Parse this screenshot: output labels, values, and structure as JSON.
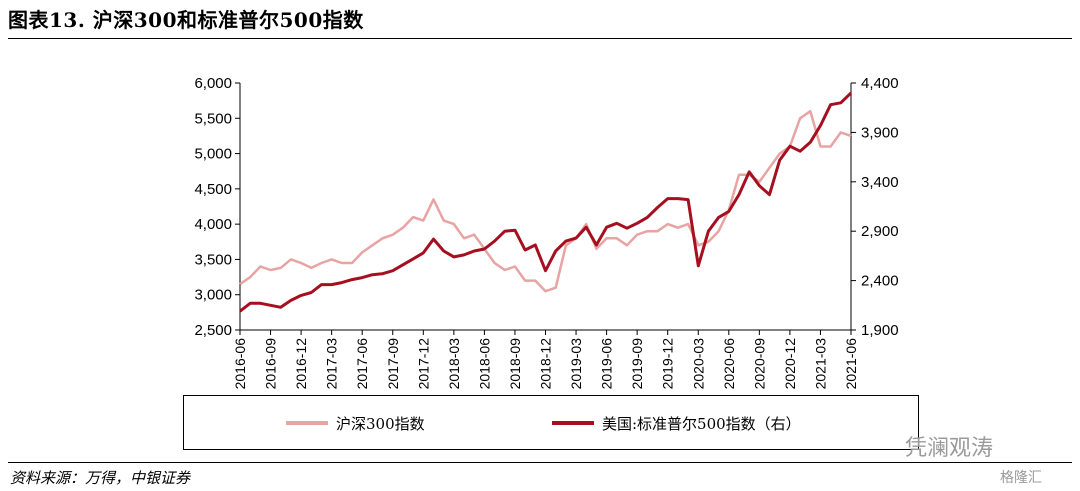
{
  "header": {
    "title": "图表13. 沪深300和标准普尔500指数"
  },
  "footer": {
    "source": "资料来源：万得，中银证券"
  },
  "watermark": {
    "text": "凭澜观涛",
    "logo_text": "格隆汇"
  },
  "colors": {
    "csi300": "#e8a3a3",
    "sp500": "#a50f1f",
    "axis": "#000000"
  },
  "chart_data": {
    "type": "line",
    "title": "",
    "xlabel": "",
    "x_ticks": [
      "2016-06",
      "2016-09",
      "2016-12",
      "2017-03",
      "2017-06",
      "2017-09",
      "2017-12",
      "2018-03",
      "2018-06",
      "2018-09",
      "2018-12",
      "2019-03",
      "2019-06",
      "2019-09",
      "2019-12",
      "2020-03",
      "2020-06",
      "2020-09",
      "2020-12",
      "2021-03",
      "2021-06"
    ],
    "left_axis": {
      "ylim": [
        2500,
        6000
      ],
      "ticks": [
        "2,500",
        "3,000",
        "3,500",
        "4,000",
        "4,500",
        "5,000",
        "5,500",
        "6,000"
      ]
    },
    "right_axis": {
      "ylim": [
        1900,
        4400
      ],
      "ticks": [
        "1,900",
        "2,400",
        "2,900",
        "3,400",
        "3,900",
        "4,400"
      ]
    },
    "x": [
      "2016-06",
      "2016-07",
      "2016-08",
      "2016-09",
      "2016-10",
      "2016-11",
      "2016-12",
      "2017-01",
      "2017-02",
      "2017-03",
      "2017-04",
      "2017-05",
      "2017-06",
      "2017-07",
      "2017-08",
      "2017-09",
      "2017-10",
      "2017-11",
      "2017-12",
      "2018-01",
      "2018-02",
      "2018-03",
      "2018-04",
      "2018-05",
      "2018-06",
      "2018-07",
      "2018-08",
      "2018-09",
      "2018-10",
      "2018-11",
      "2018-12",
      "2019-01",
      "2019-02",
      "2019-03",
      "2019-04",
      "2019-05",
      "2019-06",
      "2019-07",
      "2019-08",
      "2019-09",
      "2019-10",
      "2019-11",
      "2019-12",
      "2020-01",
      "2020-02",
      "2020-03",
      "2020-04",
      "2020-05",
      "2020-06",
      "2020-07",
      "2020-08",
      "2020-09",
      "2020-10",
      "2020-11",
      "2020-12",
      "2021-01",
      "2021-02",
      "2021-03",
      "2021-04",
      "2021-05",
      "2021-06"
    ],
    "series": [
      {
        "name": "沪深300指数",
        "axis": "left",
        "values": [
          3150,
          3250,
          3400,
          3350,
          3380,
          3500,
          3450,
          3380,
          3450,
          3500,
          3450,
          3450,
          3600,
          3700,
          3800,
          3850,
          3950,
          4100,
          4050,
          4350,
          4050,
          4000,
          3800,
          3850,
          3650,
          3450,
          3350,
          3400,
          3200,
          3200,
          3050,
          3100,
          3700,
          3800,
          4000,
          3650,
          3800,
          3800,
          3700,
          3850,
          3900,
          3900,
          4000,
          3950,
          4000,
          3700,
          3750,
          3900,
          4200,
          4700,
          4700,
          4600,
          4800,
          5000,
          5100,
          5500,
          5600,
          5100,
          5100,
          5300,
          5250
        ]
      },
      {
        "name": "美国:标准普尔500指数（右）",
        "axis": "right",
        "values": [
          2090,
          2170,
          2170,
          2150,
          2130,
          2200,
          2250,
          2280,
          2360,
          2360,
          2380,
          2410,
          2430,
          2460,
          2470,
          2500,
          2560,
          2620,
          2680,
          2820,
          2700,
          2640,
          2660,
          2700,
          2720,
          2800,
          2900,
          2910,
          2710,
          2760,
          2500,
          2700,
          2800,
          2830,
          2940,
          2760,
          2940,
          2980,
          2930,
          2980,
          3040,
          3140,
          3230,
          3230,
          3220,
          2550,
          2900,
          3040,
          3100,
          3270,
          3500,
          3360,
          3270,
          3620,
          3760,
          3710,
          3800,
          3970,
          4180,
          4200,
          4300
        ]
      }
    ]
  },
  "legend": {
    "placement": "bottom",
    "items": [
      "沪深300指数",
      "美国:标准普尔500指数（右）"
    ]
  }
}
